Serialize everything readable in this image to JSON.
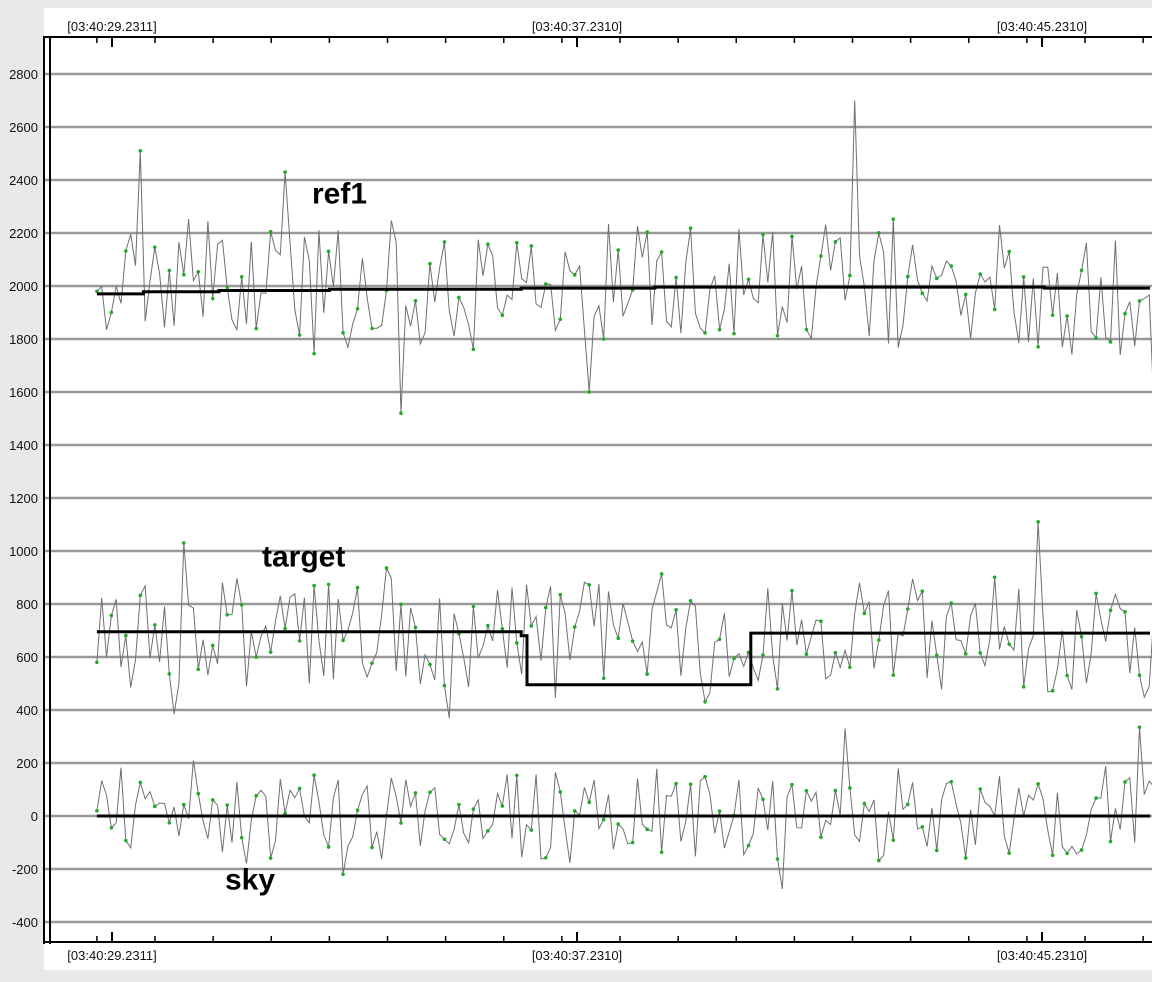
{
  "chart_data": {
    "type": "line",
    "title": "",
    "xlabel": "",
    "ylabel": "",
    "ylim": [
      -440,
      2880
    ],
    "y_ticks": [
      2800,
      2600,
      2400,
      2200,
      2000,
      1800,
      1600,
      1400,
      1200,
      1000,
      800,
      600,
      400,
      200,
      0,
      -200,
      -400
    ],
    "y_tick_labels": [
      "2800",
      "2600",
      "2400",
      "2200",
      "2000",
      "1800",
      "1600",
      "1400",
      "1200",
      "1000",
      "800",
      "600",
      "400",
      "200",
      "0",
      "-200",
      "-400"
    ],
    "x_time_labels": [
      "[03:40:29.2311]",
      "[03:40:37.2310]",
      "[03:40:45.2310]"
    ],
    "x_time_label_positions_s": [
      0.26,
      8.26,
      16.26
    ],
    "x_range_s": [
      0,
      19.1
    ],
    "grid": "horizontal",
    "colors": {
      "background": "#e9e9e9",
      "plot_background": "#ffffff",
      "grid": "#999999",
      "raw_series": "#707070",
      "raw_points": "#22aa22",
      "mean_line": "#000000"
    },
    "series": [
      {
        "name": "ref1",
        "style": "raw",
        "mean": 2000,
        "spread": 320,
        "peaks": [
          {
            "t": 0.75,
            "value": 2510
          },
          {
            "t": 3.2,
            "value": 2430
          },
          {
            "t": 5.25,
            "value": 1520
          },
          {
            "t": 8.45,
            "value": 1600
          },
          {
            "t": 13.0,
            "value": 2700
          },
          {
            "t": 18.15,
            "value": 1540
          }
        ],
        "start_value": 1980,
        "end_value": 2010
      },
      {
        "name": "",
        "style": "mean",
        "segments": [
          {
            "t0": 0.0,
            "t1": 0.8,
            "value": 1970
          },
          {
            "t0": 0.8,
            "t1": 2.1,
            "value": 1978
          },
          {
            "t0": 2.1,
            "t1": 4.0,
            "value": 1983
          },
          {
            "t0": 4.0,
            "t1": 7.3,
            "value": 1988
          },
          {
            "t0": 7.3,
            "t1": 9.6,
            "value": 1992
          },
          {
            "t0": 9.6,
            "t1": 16.3,
            "value": 1996
          },
          {
            "t0": 16.3,
            "t1": 18.6,
            "value": 1992
          }
        ]
      },
      {
        "name": "target",
        "style": "raw",
        "mean": 680,
        "spread": 310,
        "peaks": [
          {
            "t": 1.5,
            "value": 1030
          },
          {
            "t": 1.3,
            "value": 385
          },
          {
            "t": 6.1,
            "value": 370
          },
          {
            "t": 16.2,
            "value": 1110
          },
          {
            "t": 18.3,
            "value": 430
          }
        ],
        "start_value": 580,
        "end_value": 800
      },
      {
        "name": "",
        "style": "mean",
        "segments": [
          {
            "t0": 0.0,
            "t1": 7.3,
            "value": 695
          },
          {
            "t0": 7.3,
            "t1": 7.4,
            "value": 680
          },
          {
            "t0": 7.4,
            "t1": 11.25,
            "value": 495
          },
          {
            "t0": 11.25,
            "t1": 19.1,
            "value": 690
          }
        ]
      },
      {
        "name": "sky",
        "style": "raw",
        "mean": 0,
        "spread": 230,
        "peaks": [
          {
            "t": 1.7,
            "value": 210
          },
          {
            "t": 4.2,
            "value": 260
          },
          {
            "t": 4.25,
            "value": -220
          },
          {
            "t": 12.9,
            "value": 330
          },
          {
            "t": 11.8,
            "value": -275
          },
          {
            "t": 17.95,
            "value": 335
          }
        ],
        "start_value": 20,
        "end_value": 30
      },
      {
        "name": "",
        "style": "mean",
        "segments": [
          {
            "t0": 0.0,
            "t1": 19.1,
            "value": 0
          }
        ]
      }
    ],
    "series_label_anchor_values": [
      2350,
      980,
      -240
    ]
  }
}
